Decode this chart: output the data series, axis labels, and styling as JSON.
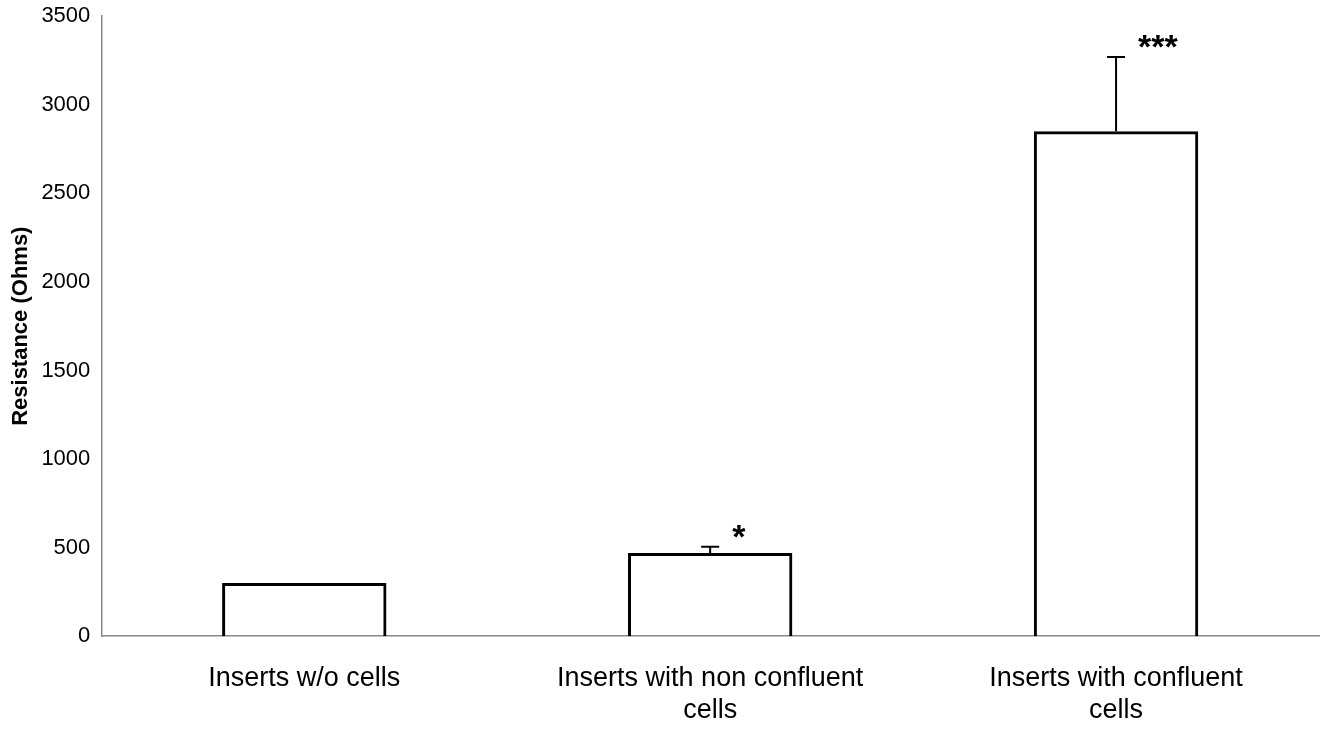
{
  "chart_data": {
    "type": "bar",
    "ylabel": "Resistance (Ohms)",
    "categories": [
      "Inserts w/o cells",
      "Inserts with non confluent cells",
      "Inserts with confluent cells"
    ],
    "values": [
      300,
      470,
      2850
    ],
    "errors": [
      null,
      [
        470,
        505
      ],
      [
        2850,
        3270
      ]
    ],
    "color": "#000000",
    "ylim": [
      0,
      3500
    ],
    "yticks": [
      0,
      500,
      1000,
      1500,
      2000,
      2500,
      3000,
      3500
    ],
    "annotations": [
      {
        "text": "*",
        "x": "Inserts with non confluent cells",
        "y": 505
      },
      {
        "text": "***",
        "x": "Inserts with confluent cells",
        "y": 3270
      }
    ]
  }
}
